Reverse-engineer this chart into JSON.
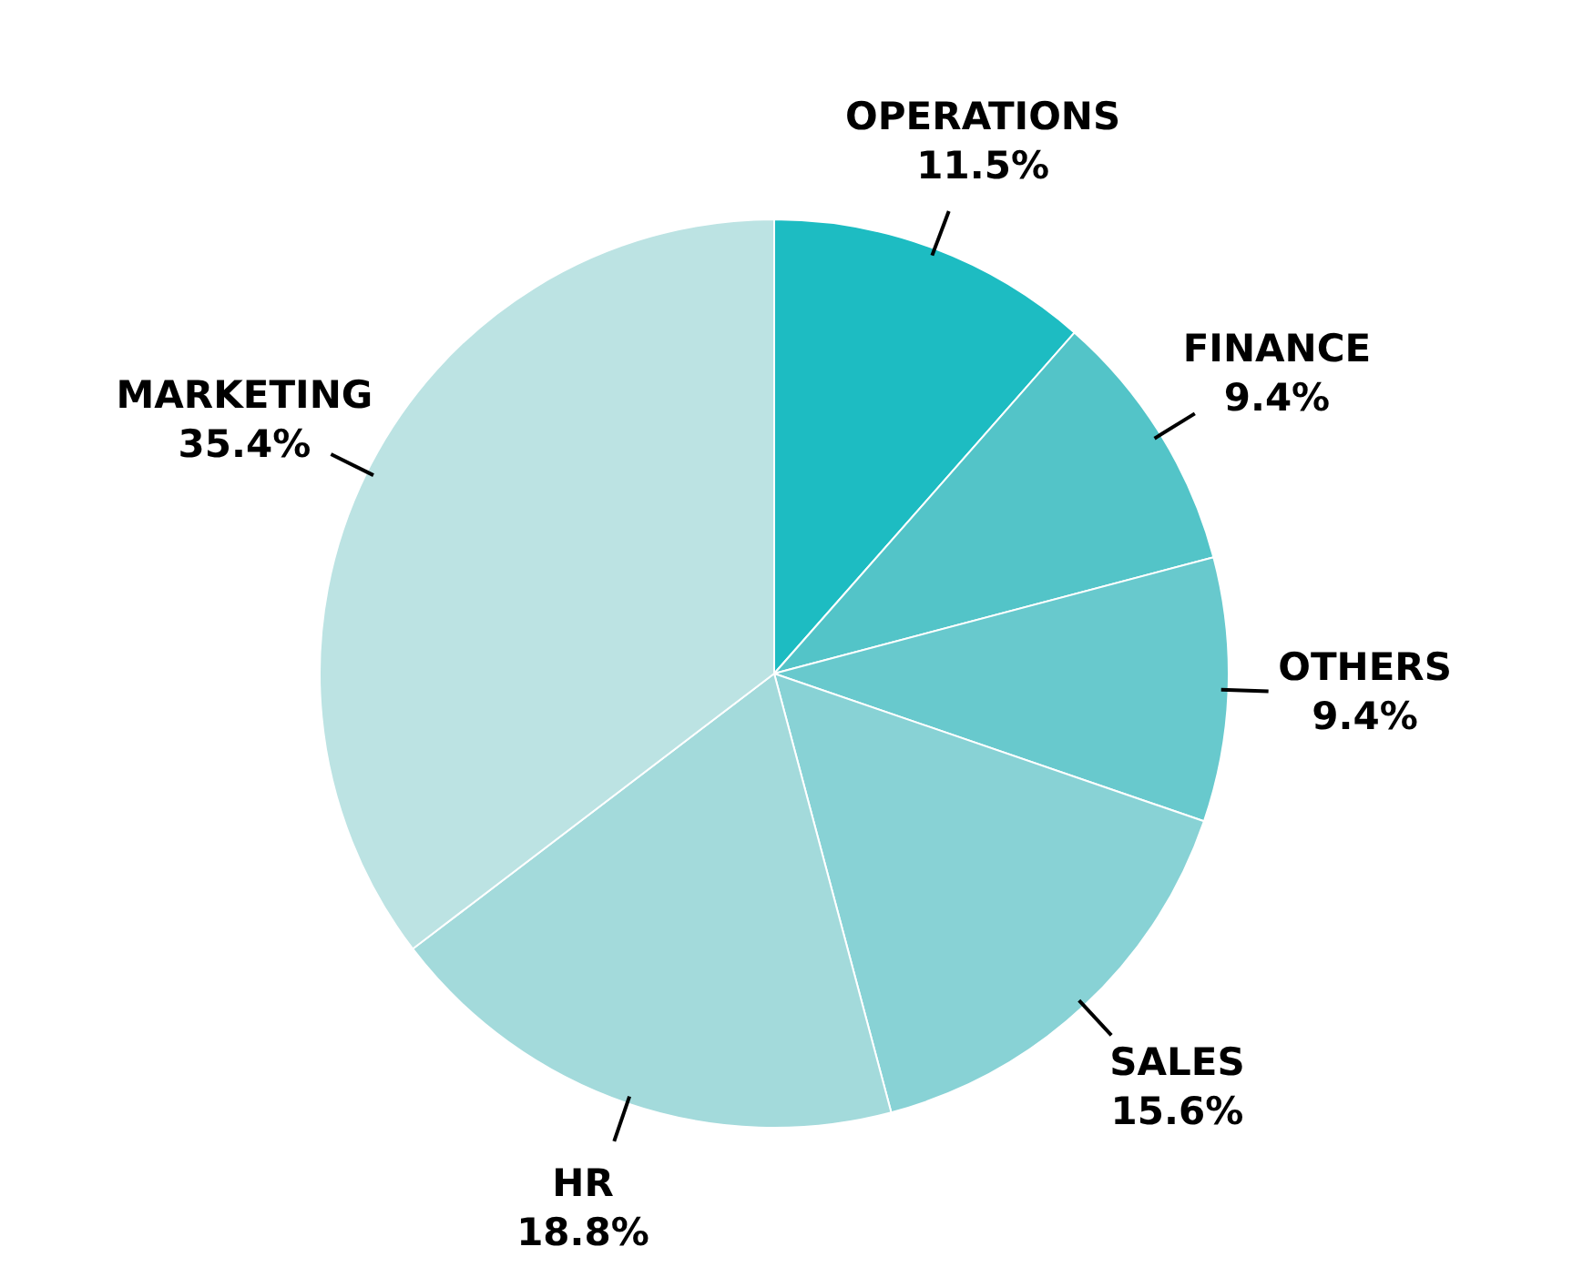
{
  "chart_data": {
    "type": "pie",
    "categories": [
      "OPERATIONS",
      "FINANCE",
      "OTHERS",
      "SALES",
      "HR",
      "MARKETING"
    ],
    "values": [
      11.5,
      9.4,
      9.4,
      15.6,
      18.8,
      35.4
    ],
    "colors": [
      "#1dbcc2",
      "#53c4c8",
      "#68c9cd",
      "#88d2d5",
      "#a3dadb",
      "#bce3e3"
    ],
    "value_labels": [
      "11.5%",
      "9.4%",
      "9.4%",
      "15.6%",
      "18.8%",
      "35.4%"
    ],
    "legend": false
  }
}
